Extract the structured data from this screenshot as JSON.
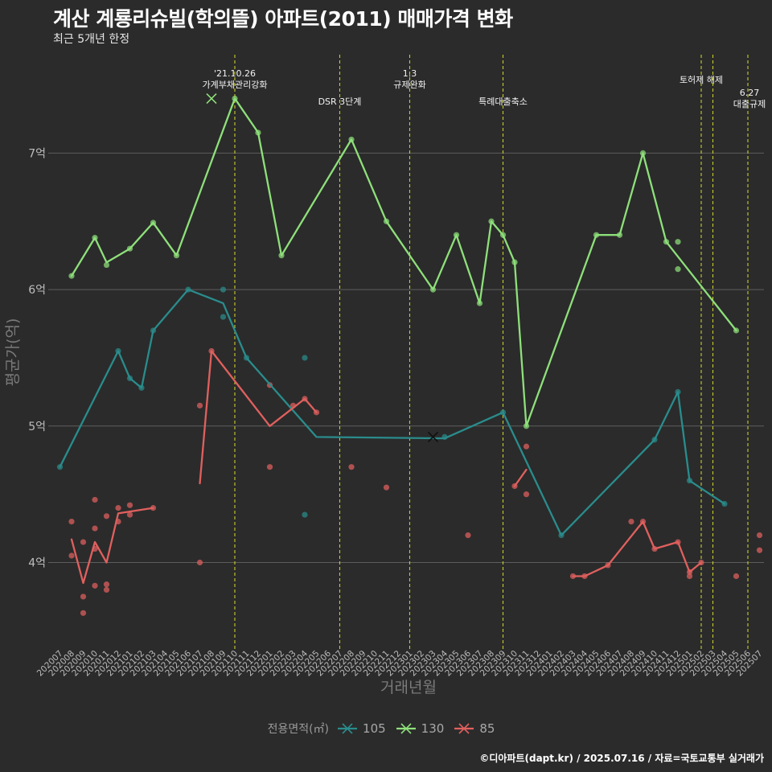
{
  "title": "계산 계룡리슈빌(학의뜰) 아파트(2011) 매매가격 변화",
  "subtitle": "최근 5개년 한정",
  "footer": "©디아파트(dapt.kr) / 2025.07.16 / 자료=국토교통부 실거래가",
  "legend": {
    "title": "전용면적(㎡)",
    "items": [
      {
        "label": "105",
        "color": "#2a8c8c"
      },
      {
        "label": "130",
        "color": "#8ee07a"
      },
      {
        "label": "85",
        "color": "#e0605e"
      }
    ]
  },
  "chart_data": {
    "type": "line",
    "xlabel": "거래년월",
    "ylabel": "평균가(억)",
    "categories": [
      "202007",
      "202008",
      "202009",
      "202010",
      "202011",
      "202012",
      "202101",
      "202102",
      "202103",
      "202104",
      "202105",
      "202106",
      "202107",
      "202108",
      "202109",
      "202110",
      "202111",
      "202112",
      "202201",
      "202202",
      "202203",
      "202204",
      "202205",
      "202206",
      "202207",
      "202208",
      "202209",
      "202210",
      "202211",
      "202212",
      "202301",
      "202302",
      "202303",
      "202304",
      "202305",
      "202306",
      "202307",
      "202308",
      "202309",
      "202310",
      "202311",
      "202312",
      "202401",
      "202402",
      "202403",
      "202404",
      "202405",
      "202406",
      "202407",
      "202408",
      "202409",
      "202410",
      "202411",
      "202412",
      "202501",
      "202502",
      "202503",
      "202504",
      "202505",
      "202506",
      "202507"
    ],
    "yticks": [
      {
        "value": 4,
        "label": "4억"
      },
      {
        "value": 5,
        "label": "5억"
      },
      {
        "value": 6,
        "label": "6억"
      },
      {
        "value": 7,
        "label": "7억"
      }
    ],
    "ylim": [
      3.45,
      7.75
    ],
    "grid": "horizontal",
    "legend_position": "bottom",
    "series": [
      {
        "name": "105",
        "color": "#2a8c8c",
        "line": [
          [
            "202007",
            4.7
          ],
          [
            "202012",
            5.55
          ],
          [
            "202101",
            5.35
          ],
          [
            "202102",
            5.28
          ],
          [
            "202103",
            5.7
          ],
          [
            "202106",
            6.0
          ],
          [
            "202109",
            5.9
          ],
          [
            "202111",
            5.5
          ],
          [
            "202205",
            4.92
          ],
          [
            "202304",
            4.91
          ],
          [
            "202309",
            5.1
          ],
          [
            "202402",
            4.2
          ],
          [
            "202410",
            4.9
          ],
          [
            "202412",
            5.25
          ],
          [
            "202501",
            4.6
          ],
          [
            "202504",
            4.43
          ]
        ],
        "points": [
          [
            "202007",
            4.7
          ],
          [
            "202012",
            5.55
          ],
          [
            "202101",
            5.35
          ],
          [
            "202102",
            5.28
          ],
          [
            "202103",
            5.7
          ],
          [
            "202106",
            6.0
          ],
          [
            "202109",
            6.0
          ],
          [
            "202109",
            5.8
          ],
          [
            "202111",
            5.5
          ],
          [
            "202204",
            5.5
          ],
          [
            "202204",
            4.35
          ],
          [
            "202304",
            4.92
          ],
          [
            "202309",
            5.1
          ],
          [
            "202402",
            4.2
          ],
          [
            "202410",
            4.9
          ],
          [
            "202412",
            5.25
          ],
          [
            "202501",
            4.6
          ],
          [
            "202504",
            4.43
          ]
        ]
      },
      {
        "name": "130",
        "color": "#8ee07a",
        "line": [
          [
            "202008",
            6.1
          ],
          [
            "202010",
            6.38
          ],
          [
            "202011",
            6.2
          ],
          [
            "202101",
            6.3
          ],
          [
            "202103",
            6.49
          ],
          [
            "202105",
            6.25
          ],
          [
            "202110",
            7.4
          ],
          [
            "202112",
            7.15
          ],
          [
            "202202",
            6.25
          ],
          [
            "202208",
            7.1
          ],
          [
            "202211",
            6.5
          ],
          [
            "202303",
            6.0
          ],
          [
            "202305",
            6.4
          ],
          [
            "202307",
            5.9
          ],
          [
            "202308",
            6.5
          ],
          [
            "202309",
            6.4
          ],
          [
            "202310",
            6.2
          ],
          [
            "202311",
            5.0
          ],
          [
            "202405",
            6.4
          ],
          [
            "202407",
            6.4
          ],
          [
            "202409",
            7.0
          ],
          [
            "202411",
            6.35
          ],
          [
            "202505",
            5.7
          ]
        ],
        "points": [
          [
            "202008",
            6.1
          ],
          [
            "202010",
            6.38
          ],
          [
            "202011",
            6.18
          ],
          [
            "202101",
            6.3
          ],
          [
            "202103",
            6.49
          ],
          [
            "202105",
            6.25
          ],
          [
            "202110",
            7.4
          ],
          [
            "202112",
            7.15
          ],
          [
            "202202",
            6.25
          ],
          [
            "202208",
            7.1
          ],
          [
            "202211",
            6.5
          ],
          [
            "202303",
            6.0
          ],
          [
            "202305",
            6.4
          ],
          [
            "202307",
            5.9
          ],
          [
            "202308",
            6.5
          ],
          [
            "202309",
            6.4
          ],
          [
            "202310",
            6.2
          ],
          [
            "202311",
            5.0
          ],
          [
            "202405",
            6.4
          ],
          [
            "202407",
            6.4
          ],
          [
            "202409",
            7.0
          ],
          [
            "202411",
            6.35
          ],
          [
            "202412",
            6.35
          ],
          [
            "202412",
            6.15
          ],
          [
            "202505",
            5.7
          ]
        ]
      },
      {
        "name": "85",
        "color": "#e0605e",
        "line_segments": [
          [
            [
              "202008",
              4.17
            ],
            [
              "202009",
              3.85
            ],
            [
              "202010",
              4.15
            ],
            [
              "202011",
              4.0
            ],
            [
              "202012",
              4.36
            ],
            [
              "202103",
              4.4
            ]
          ],
          [
            [
              "202107",
              4.58
            ],
            [
              "202108",
              5.55
            ],
            [
              "202201",
              5.0
            ],
            [
              "202204",
              5.2
            ],
            [
              "202205",
              5.1
            ]
          ],
          [
            [
              "202310",
              4.56
            ],
            [
              "202311",
              4.68
            ]
          ],
          [
            [
              "202403",
              3.9
            ],
            [
              "202404",
              3.9
            ],
            [
              "202406",
              3.98
            ],
            [
              "202409",
              4.3
            ],
            [
              "202410",
              4.1
            ],
            [
              "202412",
              4.15
            ],
            [
              "202501",
              3.93
            ],
            [
              "202502",
              4.0
            ]
          ]
        ],
        "points": [
          [
            "202008",
            4.3
          ],
          [
            "202008",
            4.05
          ],
          [
            "202009",
            4.15
          ],
          [
            "202009",
            3.75
          ],
          [
            "202009",
            3.63
          ],
          [
            "202010",
            4.46
          ],
          [
            "202010",
            4.25
          ],
          [
            "202010",
            4.1
          ],
          [
            "202010",
            3.83
          ],
          [
            "202011",
            4.34
          ],
          [
            "202011",
            3.84
          ],
          [
            "202011",
            3.8
          ],
          [
            "202012",
            4.4
          ],
          [
            "202012",
            4.3
          ],
          [
            "202101",
            4.42
          ],
          [
            "202101",
            4.35
          ],
          [
            "202103",
            4.4
          ],
          [
            "202107",
            5.15
          ],
          [
            "202107",
            4.0
          ],
          [
            "202108",
            5.55
          ],
          [
            "202201",
            5.3
          ],
          [
            "202201",
            4.7
          ],
          [
            "202203",
            5.15
          ],
          [
            "202204",
            5.2
          ],
          [
            "202205",
            5.1
          ],
          [
            "202208",
            4.7
          ],
          [
            "202211",
            4.55
          ],
          [
            "202306",
            4.2
          ],
          [
            "202310",
            4.56
          ],
          [
            "202311",
            4.85
          ],
          [
            "202311",
            4.5
          ],
          [
            "202403",
            3.9
          ],
          [
            "202404",
            3.9
          ],
          [
            "202406",
            3.98
          ],
          [
            "202408",
            4.3
          ],
          [
            "202409",
            4.3
          ],
          [
            "202410",
            4.1
          ],
          [
            "202412",
            4.15
          ],
          [
            "202501",
            3.9
          ],
          [
            "202501",
            3.93
          ],
          [
            "202502",
            4.0
          ],
          [
            "202505",
            3.9
          ],
          [
            "202507",
            4.2
          ],
          [
            "202507",
            4.09
          ]
        ]
      }
    ],
    "markers": [
      {
        "series": "130",
        "x": "202108",
        "y": 7.4
      },
      {
        "series": "105",
        "x": "202303",
        "y": 4.92
      }
    ],
    "events": [
      {
        "x": "202110",
        "label_lines": [
          "'21.10.26",
          "가계부채관리강화"
        ],
        "row": 1
      },
      {
        "x": "202207",
        "label_lines": [
          "DSR 3단계"
        ],
        "row": 2
      },
      {
        "x": "202301",
        "label_lines": [
          "1.3",
          "규제완화"
        ],
        "row": 1
      },
      {
        "x": "202309",
        "label_lines": [
          "특례대출축소"
        ],
        "row": 2
      },
      {
        "x": "202502",
        "label_lines": [
          "토허제 해제"
        ],
        "row": 0
      },
      {
        "x": "202503",
        "label_lines": [],
        "row": 0
      },
      {
        "x": "202506",
        "label_lines": [
          "6.27",
          "대출규제"
        ],
        "row": 3
      }
    ]
  }
}
